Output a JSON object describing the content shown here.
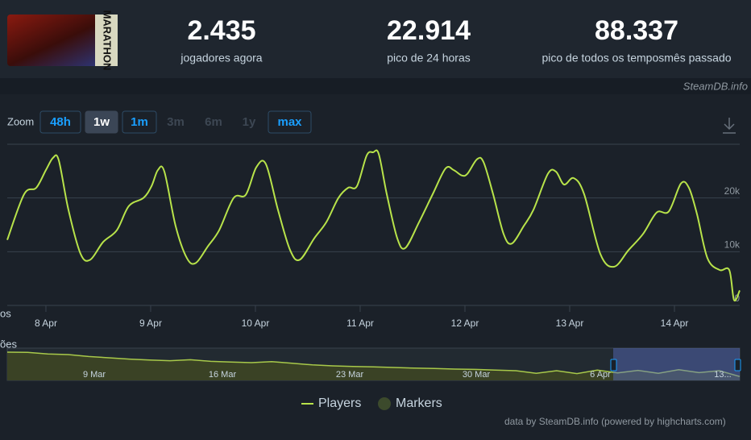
{
  "logo_text": "MARATHON",
  "stats": [
    {
      "value": "2.435",
      "label": "jogadores agora"
    },
    {
      "value": "22.914",
      "label": "pico de 24 horas"
    },
    {
      "value": "88.337",
      "label": "pico de todos os temposmês passado"
    }
  ],
  "credit": "SteamDB.info",
  "zoom": {
    "label": "Zoom",
    "buttons": [
      "48h",
      "1w",
      "1m",
      "3m",
      "6m",
      "1y",
      "max"
    ],
    "active": "1w",
    "enabled": [
      "48h",
      "1w",
      "1m",
      "max"
    ]
  },
  "chart_data": {
    "type": "line",
    "ylabel": "os",
    "x": [
      7.631,
      7.792,
      7.908,
      8.0,
      8.069,
      8.123,
      8.215,
      8.331,
      8.423,
      8.546,
      8.677,
      8.792,
      8.931,
      9.008,
      9.069,
      9.131,
      9.238,
      9.346,
      9.431,
      9.546,
      9.654,
      9.792,
      9.908,
      10.008,
      10.1,
      10.215,
      10.331,
      10.423,
      10.562,
      10.677,
      10.792,
      10.885,
      10.969,
      11.062,
      11.123,
      11.177,
      11.254,
      11.354,
      11.431,
      11.562,
      11.692,
      11.815,
      11.892,
      11.969,
      12.023,
      12.115,
      12.177,
      12.269,
      12.369,
      12.446,
      12.562,
      12.654,
      12.792,
      12.869,
      12.946,
      13.038,
      13.138,
      13.292,
      13.423,
      13.562,
      13.7,
      13.831,
      13.946,
      14.062,
      14.138,
      14.215,
      14.315,
      14.431,
      14.523,
      14.569,
      14.623
    ],
    "series": [
      {
        "name": "Players",
        "color": "#b8e34a",
        "values": [
          12200,
          20700,
          21900,
          25200,
          27500,
          27000,
          17800,
          9600,
          8500,
          11800,
          14000,
          18500,
          20000,
          22200,
          25200,
          24900,
          14800,
          8800,
          7900,
          11000,
          14000,
          20000,
          20600,
          25700,
          26300,
          17800,
          10300,
          8500,
          12500,
          15500,
          20000,
          21900,
          22200,
          27900,
          28500,
          28200,
          20700,
          12500,
          10700,
          15500,
          20700,
          25500,
          25200,
          24200,
          24500,
          27200,
          26700,
          20700,
          13300,
          11500,
          14800,
          17800,
          24500,
          24900,
          22500,
          23700,
          20700,
          9600,
          7200,
          10300,
          13300,
          17300,
          17500,
          22700,
          21900,
          17000,
          8800,
          6600,
          6600,
          1000,
          2800
        ]
      }
    ],
    "markers_legend": {
      "name": "Markers",
      "color": "#3c4a2c"
    },
    "xlim": [
      7.631,
      14.623
    ],
    "xticks": [
      {
        "value": 8,
        "label": "8 Apr"
      },
      {
        "value": 9,
        "label": "9 Apr"
      },
      {
        "value": 10,
        "label": "10 Apr"
      },
      {
        "value": 11,
        "label": "11 Apr"
      },
      {
        "value": 12,
        "label": "12 Apr"
      },
      {
        "value": 13,
        "label": "13 Apr"
      },
      {
        "value": 14,
        "label": "14 Apr"
      }
    ],
    "ylim": [
      0,
      30000
    ],
    "yticks": [
      0,
      {
        "value": 10000,
        "label": "10k"
      },
      {
        "value": 20000,
        "label": "20k"
      }
    ],
    "grid": true,
    "legend": "bottom"
  },
  "navigator": {
    "label": "ões",
    "xticks": [
      "9 Mar",
      "16 Mar",
      "23 Mar",
      "30 Mar",
      "6 Apr",
      "13..."
    ],
    "ylim": [
      0,
      100000
    ],
    "values": [
      87500,
      87000,
      82000,
      80000,
      74000,
      70000,
      66000,
      63000,
      61000,
      64000,
      59000,
      57000,
      55000,
      58000,
      53000,
      48000,
      45000,
      43000,
      42000,
      40000,
      38000,
      37000,
      35000,
      34000,
      32000,
      30000,
      22000,
      30000,
      21000,
      32000,
      23000,
      31000,
      22000,
      33000,
      24000,
      30000,
      12000
    ]
  },
  "footer": "data by SteamDB.info (powered by highcharts.com)"
}
